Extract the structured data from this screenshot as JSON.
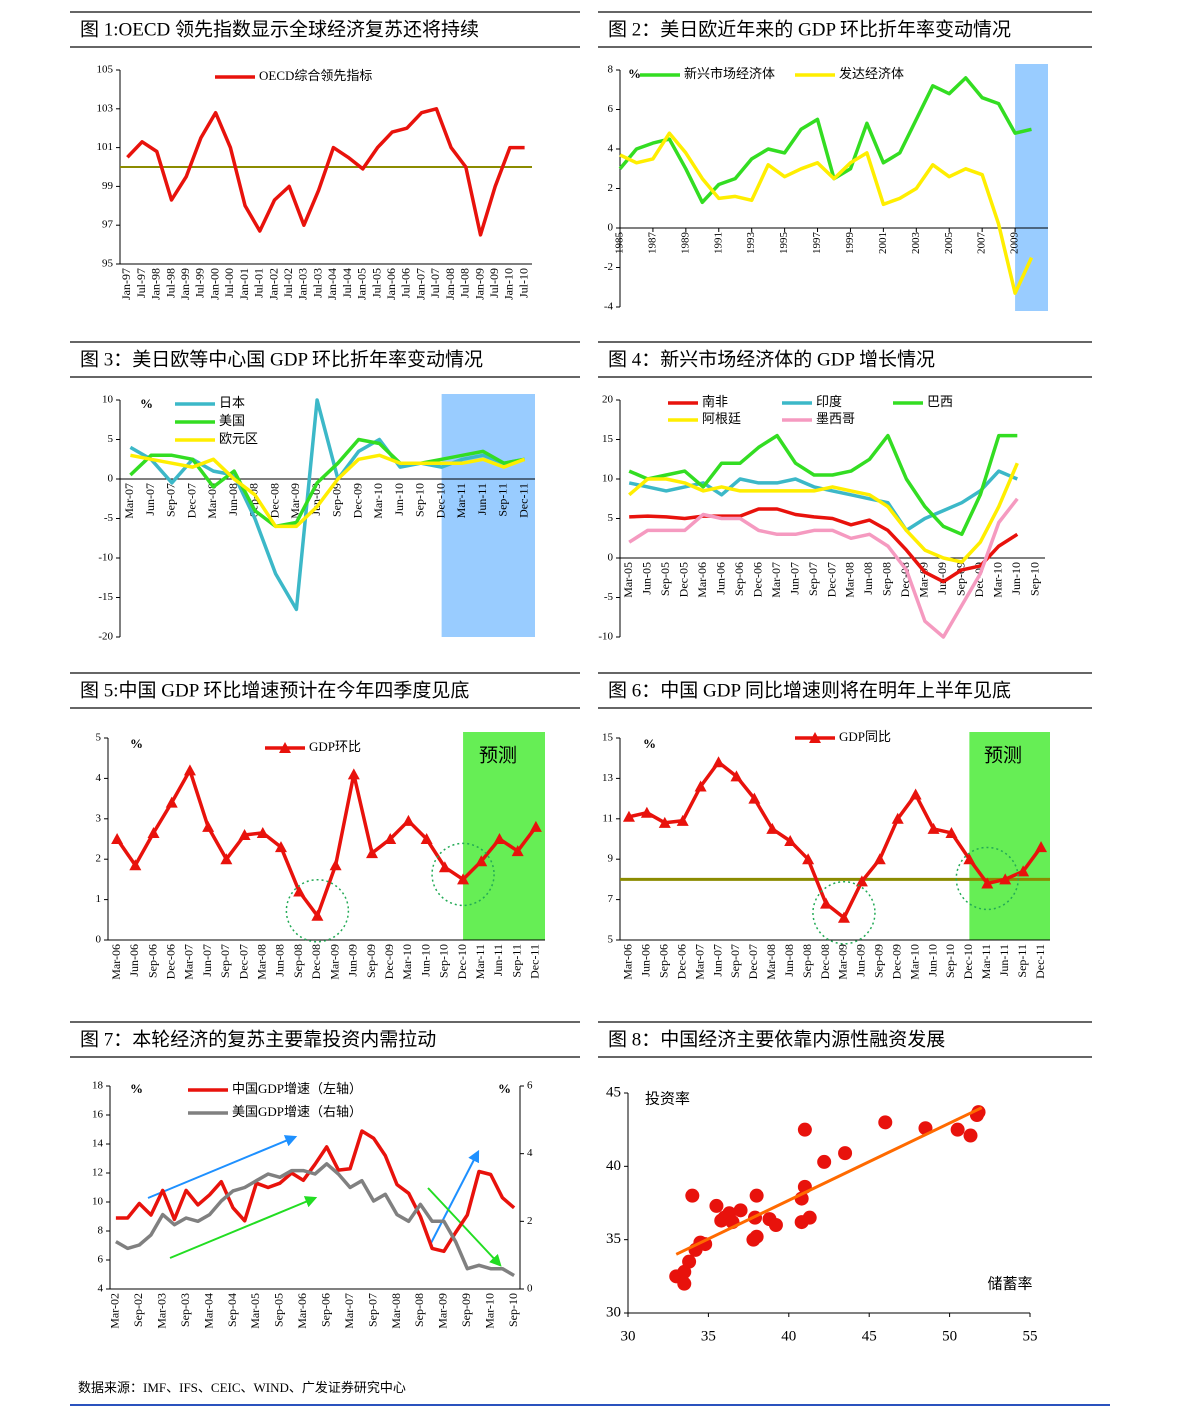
{
  "chart_data": [
    {
      "type": "line",
      "title": "图 1:OECD 领先指数显示全球经济复苏还将持续",
      "categories": [
        "Jan-97",
        "Jul-97",
        "Jan-98",
        "Jul-98",
        "Jan-99",
        "Jul-99",
        "Jan-00",
        "Jul-00",
        "Jan-01",
        "Jul-01",
        "Jan-02",
        "Jul-02",
        "Jan-03",
        "Jul-03",
        "Jan-04",
        "Jul-04",
        "Jan-05",
        "Jul-05",
        "Jan-06",
        "Jul-06",
        "Jan-07",
        "Jul-07",
        "Jan-08",
        "Jul-08",
        "Jan-09",
        "Jul-09",
        "Jan-10",
        "Jul-10"
      ],
      "series": [
        {
          "name": "OECD综合领先指标",
          "color": "#e8120c",
          "values": [
            100.5,
            101.3,
            100.8,
            98.3,
            99.5,
            101.5,
            102.8,
            101.0,
            98.0,
            96.7,
            98.3,
            99.0,
            97.0,
            98.8,
            101.0,
            100.5,
            99.9,
            101.0,
            101.8,
            102.0,
            102.8,
            103.0,
            101.0,
            100.0,
            96.5,
            99.0,
            101.0,
            101.0
          ]
        }
      ],
      "ylim": [
        95,
        105
      ],
      "yticks": [
        95,
        97,
        99,
        101,
        103,
        105
      ],
      "reference_line": 100,
      "reference_color": "#8b8b00"
    },
    {
      "type": "line",
      "title": "图 2：美日欧近年来的 GDP 环比折年率变动情况",
      "y_unit": "%",
      "x": [
        1985,
        1986,
        1987,
        1988,
        1989,
        1990,
        1991,
        1992,
        1993,
        1994,
        1995,
        1996,
        1997,
        1998,
        1999,
        2000,
        2001,
        2002,
        2003,
        2004,
        2005,
        2006,
        2007,
        2008,
        2009,
        2010
      ],
      "series": [
        {
          "name": "新兴市场经济体",
          "color": "#33dd22",
          "values": [
            3.0,
            4.0,
            4.3,
            4.5,
            3.0,
            1.3,
            2.2,
            2.5,
            3.5,
            4.0,
            3.8,
            5.0,
            5.5,
            2.5,
            3.0,
            5.3,
            3.3,
            3.8,
            5.5,
            7.2,
            6.8,
            7.6,
            6.6,
            6.3,
            4.8,
            5.0
          ]
        },
        {
          "name": "发达经济体",
          "color": "#ffee00",
          "values": [
            3.7,
            3.3,
            3.5,
            4.8,
            3.8,
            2.5,
            1.5,
            1.6,
            1.4,
            3.2,
            2.6,
            3.0,
            3.3,
            2.5,
            3.3,
            3.8,
            1.2,
            1.5,
            2.0,
            3.2,
            2.6,
            3.0,
            2.7,
            0.2,
            -3.3,
            -1.5
          ]
        }
      ],
      "xlim": [
        1985,
        2011
      ],
      "xticks": [
        1985,
        1987,
        1989,
        1991,
        1993,
        1995,
        1997,
        1999,
        2001,
        2003,
        2005,
        2007,
        2009
      ],
      "ylim": [
        -4,
        8
      ],
      "yticks": [
        -4,
        -2,
        0,
        2,
        4,
        6,
        8
      ],
      "shade": [
        2009,
        2011
      ],
      "shade_color": "#99ccff"
    },
    {
      "type": "line",
      "title": "图 3：美日欧等中心国 GDP 环比折年率变动情况",
      "y_unit": "%",
      "categories": [
        "Mar-07",
        "Jun-07",
        "Sep-07",
        "Dec-07",
        "Mar-08",
        "Jun-08",
        "Sep-08",
        "Dec-08",
        "Mar-09",
        "Jun-09",
        "Sep-09",
        "Dec-09",
        "Mar-10",
        "Jun-10",
        "Sep-10",
        "Dec-10",
        "Mar-11",
        "Jun-11",
        "Sep-11",
        "Dec-11"
      ],
      "series": [
        {
          "name": "日本",
          "color": "#3cb8c8",
          "values": [
            4,
            2.5,
            -0.5,
            2.5,
            1,
            0.5,
            -5,
            -12,
            -16.5,
            10,
            0,
            3.5,
            5,
            1.5,
            2,
            1.5,
            2.5,
            3,
            2,
            2.5
          ]
        },
        {
          "name": "美国",
          "color": "#33dd22",
          "values": [
            0.5,
            3,
            3,
            2.5,
            -1,
            1,
            -4,
            -6,
            -5.5,
            -0.5,
            2,
            5,
            4.5,
            2,
            2,
            2.5,
            3,
            3.5,
            2,
            2.5
          ]
        },
        {
          "name": "欧元区",
          "color": "#ffee00",
          "values": [
            3,
            2.5,
            2,
            1.5,
            2.5,
            0,
            -2,
            -6,
            -6,
            -3.5,
            0,
            2.5,
            3,
            2,
            2,
            2,
            2,
            2.5,
            1.5,
            2.5
          ]
        }
      ],
      "ylim": [
        -20,
        10
      ],
      "yticks": [
        -20,
        -15,
        -10,
        -5,
        0,
        5,
        10
      ],
      "shade_from": "Dec-10",
      "shade_color": "#99ccff"
    },
    {
      "type": "line",
      "title": "图 4：新兴市场经济体的 GDP 增长情况",
      "categories": [
        "Mar-05",
        "Jun-05",
        "Sep-05",
        "Dec-05",
        "Mar-06",
        "Jun-06",
        "Sep-06",
        "Dec-06",
        "Mar-07",
        "Jun-07",
        "Sep-07",
        "Dec-07",
        "Mar-08",
        "Jun-08",
        "Sep-08",
        "Dec-08",
        "Mar-09",
        "Jun-09",
        "Sep-09",
        "Dec-09",
        "Mar-10",
        "Jun-10",
        "Sep-10"
      ],
      "series": [
        {
          "name": "南非",
          "color": "#e8120c",
          "values": [
            5.2,
            5.3,
            5.2,
            5.0,
            5.3,
            5.3,
            5.3,
            6.2,
            6.2,
            5.5,
            5.2,
            5.0,
            4.2,
            4.8,
            3.5,
            1.0,
            -1.8,
            -3.0,
            -1.5,
            -1.0,
            1.5,
            3.0,
            null
          ]
        },
        {
          "name": "印度",
          "color": "#3cb8c8",
          "values": [
            9.5,
            9.0,
            8.5,
            9.0,
            9.5,
            8.0,
            10.0,
            9.5,
            9.5,
            10.0,
            9.0,
            8.5,
            8.0,
            7.5,
            7.0,
            3.5,
            5.0,
            6.0,
            7.0,
            8.5,
            11.0,
            10.0,
            null
          ]
        },
        {
          "name": "巴西",
          "color": "#33dd22",
          "values": [
            11,
            10,
            10.5,
            11,
            9,
            12,
            12,
            14,
            15.5,
            12,
            10.5,
            10.5,
            11,
            12.5,
            15.5,
            10,
            6.5,
            4,
            3,
            8,
            15.5,
            15.5,
            null
          ]
        },
        {
          "name": "阿根廷",
          "color": "#ffee00",
          "values": [
            8,
            10,
            10,
            9.5,
            8.5,
            9,
            8.5,
            8.5,
            8.5,
            8.5,
            8.5,
            9,
            8.5,
            8,
            6.5,
            3.5,
            1,
            0,
            -0.5,
            2,
            6.5,
            12,
            null
          ]
        },
        {
          "name": "墨西哥",
          "color": "#f59ac0",
          "values": [
            2,
            3.5,
            3.5,
            3.5,
            5.5,
            5,
            5,
            3.5,
            3,
            3,
            3.5,
            3.5,
            2.5,
            3,
            1.5,
            -1.5,
            -8,
            -10,
            -6,
            -2,
            4.5,
            7.5,
            null
          ]
        }
      ],
      "ylim": [
        -10,
        20
      ],
      "yticks": [
        -10,
        -5,
        0,
        5,
        10,
        15,
        20
      ]
    },
    {
      "type": "line",
      "title": "图 5:中国 GDP 环比增速预计在今年四季度见底",
      "y_unit": "%",
      "annotation": "预测",
      "categories": [
        "Mar-06",
        "Jun-06",
        "Sep-06",
        "Dec-06",
        "Mar-07",
        "Jun-07",
        "Sep-07",
        "Dec-07",
        "Mar-08",
        "Jun-08",
        "Sep-08",
        "Dec-08",
        "Mar-09",
        "Jun-09",
        "Sep-09",
        "Dec-09",
        "Mar-10",
        "Jun-10",
        "Sep-10",
        "Dec-10",
        "Mar-11",
        "Jun-11",
        "Sep-11",
        "Dec-11"
      ],
      "series": [
        {
          "name": "GDP环比",
          "color": "#e8120c",
          "marker": "triangle",
          "values": [
            2.5,
            1.85,
            2.65,
            3.4,
            4.2,
            2.8,
            2.0,
            2.6,
            2.65,
            2.3,
            1.2,
            0.6,
            1.85,
            4.1,
            2.15,
            2.5,
            2.95,
            2.5,
            1.8,
            1.5,
            1.95,
            2.5,
            2.2,
            2.8
          ]
        }
      ],
      "ylim": [
        0,
        5
      ],
      "yticks": [
        0,
        1,
        2,
        3,
        4,
        5
      ],
      "shade_from": "Dec-10",
      "shade_color": "#66ee55",
      "highlight": [
        "Dec-08",
        "Dec-10"
      ]
    },
    {
      "type": "line",
      "title": "图 6：中国 GDP 同比增速则将在明年上半年见底",
      "y_unit": "%",
      "annotation": "预测",
      "categories": [
        "Mar-06",
        "Jun-06",
        "Sep-06",
        "Dec-06",
        "Mar-07",
        "Jun-07",
        "Sep-07",
        "Dec-07",
        "Mar-08",
        "Jun-08",
        "Sep-08",
        "Dec-08",
        "Mar-09",
        "Jun-09",
        "Sep-09",
        "Dec-09",
        "Mar-10",
        "Jun-10",
        "Sep-10",
        "Dec-10",
        "Mar-11",
        "Jun-11",
        "Sep-11",
        "Dec-11"
      ],
      "series": [
        {
          "name": "GDP同比",
          "color": "#e8120c",
          "marker": "triangle",
          "values": [
            11.1,
            11.3,
            10.8,
            10.9,
            12.6,
            13.8,
            13.1,
            12.0,
            10.5,
            9.9,
            9.0,
            6.8,
            6.1,
            7.9,
            9.0,
            11.0,
            12.2,
            10.5,
            10.3,
            9.0,
            7.8,
            8.0,
            8.4,
            9.6
          ]
        }
      ],
      "ylim": [
        5,
        15
      ],
      "yticks": [
        5,
        7,
        9,
        11,
        13,
        15
      ],
      "reference_line": 8,
      "reference_color": "#8b8b00",
      "shade_from": "Dec-10",
      "shade_color": "#66ee55",
      "highlight": [
        "Mar-09",
        "Mar-11"
      ]
    },
    {
      "type": "line",
      "title": "图 7：本轮经济的复苏主要靠投资内需拉动",
      "y_unit": "%",
      "y2_unit": "%",
      "categories": [
        "Mar-02",
        null,
        "Sep-02",
        null,
        "Mar-03",
        null,
        "Sep-03",
        null,
        "Mar-04",
        null,
        "Sep-04",
        null,
        "Mar-05",
        null,
        "Sep-05",
        null,
        "Mar-06",
        null,
        "Sep-06",
        null,
        "Mar-07",
        null,
        "Sep-07",
        null,
        "Mar-08",
        null,
        "Sep-08",
        null,
        "Mar-09",
        null,
        "Sep-09",
        null,
        "Mar-10",
        null,
        "Sep-10"
      ],
      "series": [
        {
          "name": "中国GDP增速（左轴）",
          "color": "#e8120c",
          "values": [
            8.9,
            8.9,
            9.9,
            9.1,
            10.8,
            8.8,
            10.8,
            9.8,
            10.5,
            11.4,
            9.6,
            8.7,
            11.3,
            11.0,
            11.3,
            12.0,
            11.5,
            12.6,
            13.8,
            12.2,
            12.3,
            14.9,
            14.4,
            13.2,
            11.2,
            10.6,
            9.0,
            6.8,
            6.6,
            7.9,
            9.1,
            12.1,
            11.9,
            10.3,
            9.6
          ]
        },
        {
          "name": "美国GDP增速（右轴）",
          "color": "#808080",
          "axis": "y2",
          "values": [
            1.4,
            1.2,
            1.3,
            1.6,
            2.2,
            1.9,
            2.1,
            2.0,
            2.2,
            2.6,
            2.9,
            3.0,
            3.2,
            3.4,
            3.3,
            3.5,
            3.5,
            3.4,
            3.7,
            3.4,
            3.0,
            3.2,
            2.6,
            2.8,
            2.2,
            2.0,
            2.5,
            2.0,
            2.0,
            1.4,
            0.6,
            0.7,
            0.6,
            0.6,
            0.4
          ]
        }
      ],
      "ylim": [
        4,
        18
      ],
      "yticks": [
        4,
        6,
        8,
        10,
        12,
        14,
        16,
        18
      ],
      "y2lim": [
        0,
        6
      ],
      "y2ticks": [
        0,
        2,
        4,
        6
      ]
    },
    {
      "type": "scatter",
      "title": "图 8：中国经济主要依靠内源性融资发展",
      "xlabel": "储蓄率",
      "ylabel": "投资率",
      "color": "#e8120c",
      "x": [
        33,
        33.5,
        33.5,
        33.8,
        34,
        34.2,
        34.5,
        34.8,
        35.5,
        35.8,
        36,
        36.3,
        36.5,
        37,
        37.8,
        38,
        37.9,
        38,
        38.8,
        39.2,
        40.8,
        40.8,
        41,
        41,
        41.3,
        42.2,
        43.5,
        46,
        48.5,
        50.5,
        51.3,
        51.7,
        51.8
      ],
      "values": [
        32.5,
        32.8,
        32,
        33.5,
        38,
        34.3,
        34.8,
        34.7,
        37.3,
        36.3,
        36.5,
        36.8,
        36.2,
        37,
        35,
        35.2,
        36.5,
        38,
        36.4,
        36,
        36.2,
        37.8,
        38.6,
        42.5,
        36.5,
        40.3,
        40.9,
        43,
        42.6,
        42.5,
        42.1,
        43.5,
        43.7
      ],
      "trendline": {
        "x": [
          33,
          52
        ],
        "values": [
          34,
          44
        ],
        "color": "#ff6a00"
      },
      "xlim": [
        30,
        55
      ],
      "xticks": [
        30,
        35,
        40,
        45,
        50,
        55
      ],
      "ylim": [
        30,
        45
      ],
      "yticks": [
        30,
        35,
        40,
        45
      ]
    }
  ],
  "footer": {
    "source": "数据来源：IMF、IFS、CEIC、WIND、广发证券研究中心"
  }
}
